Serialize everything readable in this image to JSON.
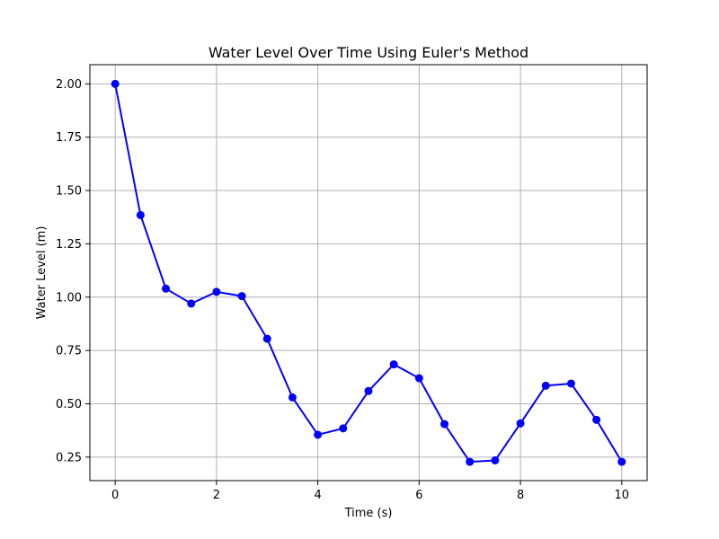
{
  "chart_data": {
    "type": "line",
    "title": "Water Level Over Time Using Euler's Method",
    "xlabel": "Time (s)",
    "ylabel": "Water Level (m)",
    "xlim": [
      -0.5,
      10.5
    ],
    "ylim": [
      0.14,
      2.09
    ],
    "x_ticks": [
      0,
      2,
      4,
      6,
      8,
      10
    ],
    "x_tick_labels": [
      "0",
      "2",
      "4",
      "6",
      "8",
      "10"
    ],
    "y_ticks": [
      0.25,
      0.5,
      0.75,
      1.0,
      1.25,
      1.5,
      1.75,
      2.0
    ],
    "y_tick_labels": [
      "0.25",
      "0.50",
      "0.75",
      "1.00",
      "1.25",
      "1.50",
      "1.75",
      "2.00"
    ],
    "grid": true,
    "series": [
      {
        "color": "#0000ff",
        "marker": "circle",
        "x": [
          0,
          0.5,
          1,
          1.5,
          2,
          2.5,
          3,
          3.5,
          4,
          4.5,
          5,
          5.5,
          6,
          6.5,
          7,
          7.5,
          8,
          8.5,
          9,
          9.5,
          10
        ],
        "values": [
          2.0,
          1.385,
          1.04,
          0.97,
          1.025,
          1.005,
          0.805,
          0.53,
          0.355,
          0.385,
          0.56,
          0.685,
          0.62,
          0.405,
          0.228,
          0.235,
          0.408,
          0.585,
          0.595,
          0.425,
          0.228
        ]
      }
    ]
  }
}
